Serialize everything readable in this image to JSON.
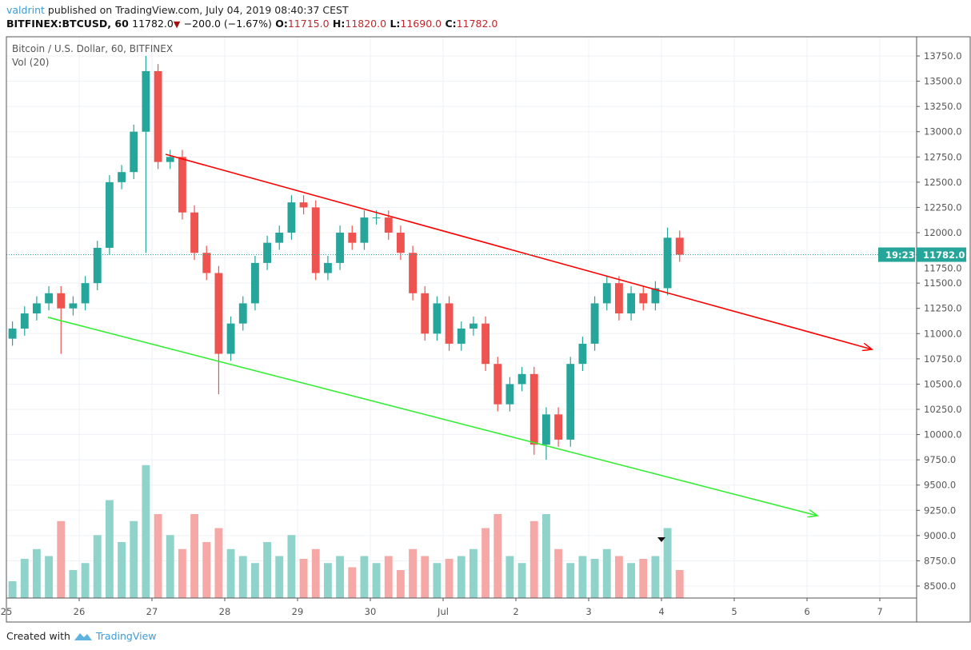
{
  "header": {
    "author": "valdrint",
    "published": "published on TradingView.com, July 04, 2019 08:40:37 CEST",
    "symbol": "BITFINEX:BTCUSD, 60",
    "last": "11782.0",
    "change": "−200.0 (−1.67%)",
    "o_label": "O:",
    "o": "11715.0",
    "h_label": "H:",
    "h": "11820.0",
    "l_label": "L:",
    "l": "11690.0",
    "c_label": "C:",
    "c": "11782.0",
    "direction_icon": "triangle-down-icon"
  },
  "legend": {
    "title": "Bitcoin / U.S. Dollar, 60, BITFINEX",
    "volume": "Vol (20)"
  },
  "footer": {
    "text": "Created with",
    "brand": "TradingView",
    "logo_icon": "tradingview-logo-icon"
  },
  "colors": {
    "up": "#26a69a",
    "down": "#ef5350",
    "vol_up": "#8fd3ca",
    "vol_down": "#f6a8a6",
    "channel_upper": "#ff0000",
    "channel_lower": "#33ee33",
    "last_price": "#26a69a",
    "grid": "#edf1f5"
  },
  "chart_data": {
    "type": "candlestick",
    "interval_displayed": "60",
    "ylim": [
      8400,
      13850
    ],
    "xlim": [
      "2019-06-25T00:00",
      "2019-07-07T14:00"
    ],
    "grid": true,
    "y_ticks": [
      "13750.0",
      "13500.0",
      "13250.0",
      "13000.0",
      "12750.0",
      "12500.0",
      "12250.0",
      "12000.0",
      "11750.0",
      "11500.0",
      "11250.0",
      "11000.0",
      "10750.0",
      "10500.0",
      "10250.0",
      "10000.0",
      "9750.0",
      "9500.0",
      "9250.0",
      "9000.0",
      "8750.0",
      "8500.0"
    ],
    "x_ticks": [
      {
        "t": "2019-06-25T00:00",
        "label": "25"
      },
      {
        "t": "2019-06-26T00:00",
        "label": "26"
      },
      {
        "t": "2019-06-27T00:00",
        "label": "27"
      },
      {
        "t": "2019-06-28T00:00",
        "label": "28"
      },
      {
        "t": "2019-06-29T00:00",
        "label": "29"
      },
      {
        "t": "2019-06-30T00:00",
        "label": "30"
      },
      {
        "t": "2019-07-01T00:00",
        "label": "Jul"
      },
      {
        "t": "2019-07-02T00:00",
        "label": "2"
      },
      {
        "t": "2019-07-03T00:00",
        "label": "3"
      },
      {
        "t": "2019-07-04T00:00",
        "label": "4"
      },
      {
        "t": "2019-07-05T00:00",
        "label": "5"
      },
      {
        "t": "2019-07-06T00:00",
        "label": "6"
      },
      {
        "t": "2019-07-07T00:00",
        "label": "7"
      }
    ],
    "last_price": {
      "value": 11782.0,
      "label": "11782.0",
      "countdown": "19:23"
    },
    "closes": [
      11050,
      11200,
      11300,
      11400,
      11250,
      11300,
      11500,
      11850,
      12500,
      12600,
      13000,
      13600,
      12700,
      12750,
      12200,
      11800,
      11600,
      10800,
      11100,
      11300,
      11700,
      11900,
      12000,
      12300,
      12250,
      11600,
      11700,
      12000,
      11900,
      12150,
      12150,
      12000,
      11800,
      11400,
      11000,
      11300,
      10900,
      11050,
      11100,
      10700,
      10300,
      10500,
      10600,
      9900,
      10200,
      9950,
      10700,
      10900,
      11300,
      11500,
      11200,
      11400,
      11300,
      11450,
      11950,
      11782
    ],
    "first_open": 10950,
    "candle_hours": 4,
    "start": "2019-06-25T00:00",
    "extreme_wicks": {
      "4": {
        "l": 10800
      },
      "11": {
        "h": 13750,
        "l": 11800
      },
      "17": {
        "l": 10400
      },
      "43": {
        "l": 9800
      },
      "44": {
        "l": 9750
      },
      "54": {
        "h": 12050
      }
    },
    "volumes": [
      12,
      28,
      35,
      30,
      55,
      20,
      25,
      45,
      70,
      40,
      55,
      95,
      60,
      45,
      35,
      60,
      40,
      50,
      35,
      30,
      25,
      40,
      30,
      45,
      28,
      35,
      25,
      30,
      22,
      30,
      25,
      30,
      20,
      35,
      30,
      25,
      28,
      30,
      35,
      50,
      60,
      30,
      25,
      55,
      60,
      35,
      25,
      30,
      28,
      35,
      30,
      25,
      28,
      30,
      50,
      20
    ],
    "trendlines": [
      {
        "name": "upper",
        "color": "#ff0000",
        "from": {
          "t": "2019-06-27T04:30",
          "p": 12776
        },
        "to": {
          "t": "2019-07-06T21:25",
          "p": 10844
        },
        "arrow": true
      },
      {
        "name": "lower",
        "color": "#33ee33",
        "from": {
          "t": "2019-06-25T13:43",
          "p": 11161
        },
        "to": {
          "t": "2019-07-06T03:25",
          "p": 9197
        },
        "arrow": true
      }
    ],
    "markers": [
      {
        "t": "2019-07-04T00:00",
        "type": "triangle-down",
        "color": "#111"
      }
    ]
  }
}
